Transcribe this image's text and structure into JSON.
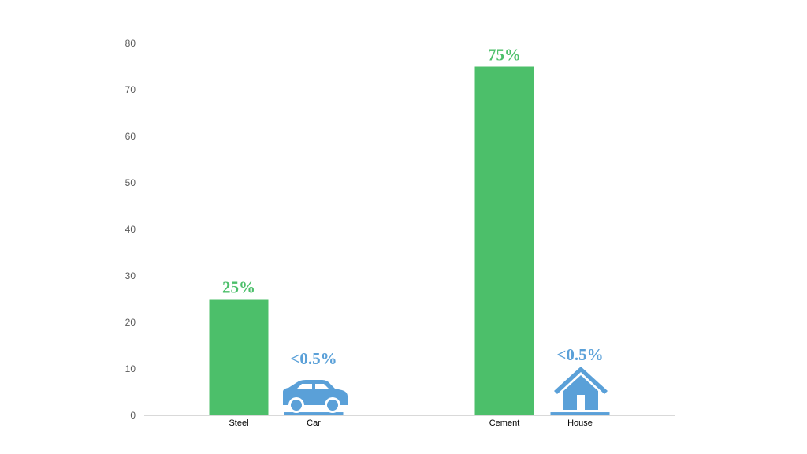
{
  "chart_data": {
    "type": "bar",
    "categories": [
      "Steel",
      "Car",
      "Cement",
      "House"
    ],
    "values": [
      25,
      0.5,
      75,
      0.5
    ],
    "value_labels": [
      "25%",
      "<0.5%",
      "75%",
      "<0.5%"
    ],
    "icons": [
      null,
      "car-icon",
      null,
      "house-icon"
    ],
    "colors": [
      "#4cbf6a",
      "#5aa0d8",
      "#4cbf6a",
      "#5aa0d8"
    ],
    "ylim": [
      0,
      80
    ],
    "yticks": [
      "0",
      "10",
      "20",
      "30",
      "40",
      "50",
      "60",
      "70",
      "80"
    ],
    "grid": false,
    "title": "",
    "xlabel": "",
    "ylabel": ""
  }
}
